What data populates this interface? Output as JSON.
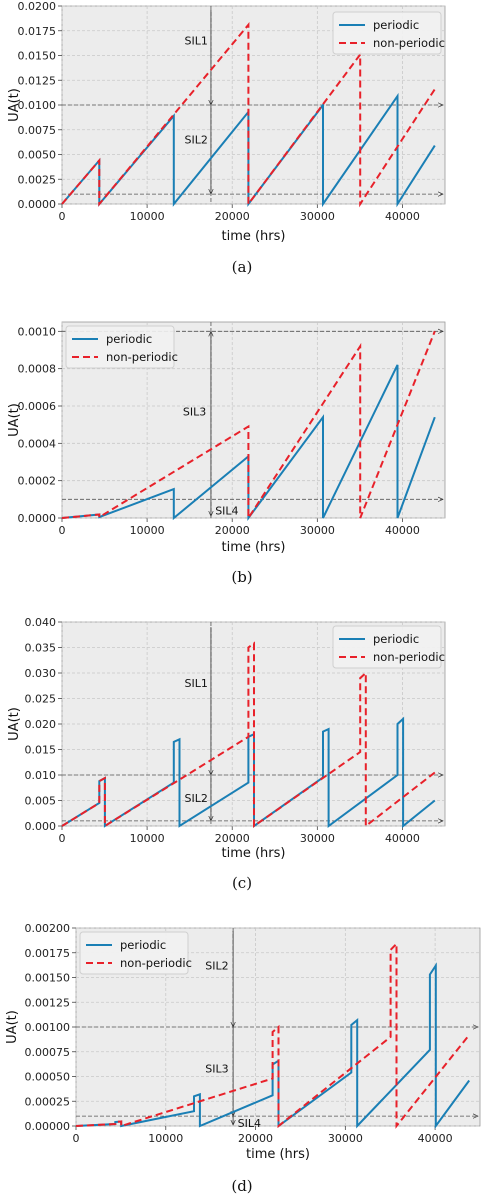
{
  "chart_data": [
    {
      "type": "line",
      "caption": "(a)",
      "xlabel": "time (hrs)",
      "ylabel": "UA(t)",
      "xlim": [
        0,
        45000
      ],
      "ylim": [
        0,
        0.02
      ],
      "xticks": [
        0,
        10000,
        20000,
        30000,
        40000
      ],
      "xtick_labels": [
        "0",
        "10000",
        "20000",
        "30000",
        "40000"
      ],
      "yticks": [
        0,
        0.0025,
        0.005,
        0.0075,
        0.01,
        0.0125,
        0.015,
        0.0175,
        0.02
      ],
      "ytick_labels": [
        "0.0000",
        "0.0025",
        "0.0050",
        "0.0075",
        "0.0100",
        "0.0125",
        "0.0150",
        "0.0175",
        "0.0200"
      ],
      "grid": true,
      "legend": "top-right",
      "series": [
        {
          "name": "periodic",
          "color": "#1a7fb5",
          "dash": "solid",
          "x": [
            0,
            4380,
            4380,
            13140,
            13140,
            21900,
            21900,
            30660,
            30660,
            39420,
            39420,
            43800
          ],
          "y": [
            0,
            0.0044,
            0,
            0.0089,
            0,
            0.0093,
            0,
            0.01,
            0,
            0.0109,
            0,
            0.0059
          ]
        },
        {
          "name": "non-periodic",
          "color": "#e8212a",
          "dash": "dashed",
          "x": [
            0,
            4380,
            4380,
            21900,
            21900,
            35040,
            35040,
            43800
          ],
          "y": [
            0,
            0.0044,
            0,
            0.0181,
            0,
            0.0151,
            0,
            0.0116
          ]
        }
      ],
      "hlines": [
        0.01,
        0.001
      ],
      "vline_x": 17500,
      "annotations": [
        {
          "text": "SIL1",
          "x": 14400,
          "y": 0.0165
        },
        {
          "text": "SIL2",
          "x": 14400,
          "y": 0.0065
        }
      ],
      "arrows": [
        {
          "x": 17500,
          "y_from": 0.0196,
          "y_to": 0.01
        },
        {
          "x": 17500,
          "y_from": 0.01,
          "y_to": 0.001
        }
      ]
    },
    {
      "type": "line",
      "caption": "(b)",
      "xlabel": "time (hrs)",
      "ylabel": "UA(t)",
      "xlim": [
        0,
        45000
      ],
      "ylim": [
        0,
        0.00105
      ],
      "xticks": [
        0,
        10000,
        20000,
        30000,
        40000
      ],
      "xtick_labels": [
        "0",
        "10000",
        "20000",
        "30000",
        "40000"
      ],
      "yticks": [
        0,
        0.0002,
        0.0004,
        0.0006,
        0.0008,
        0.001
      ],
      "ytick_labels": [
        "0.0000",
        "0.0002",
        "0.0004",
        "0.0006",
        "0.0008",
        "0.0010"
      ],
      "grid": true,
      "legend": "top-left",
      "series": [
        {
          "name": "periodic",
          "color": "#1a7fb5",
          "dash": "solid",
          "x": [
            0,
            4380,
            4380,
            13140,
            13140,
            21900,
            21900,
            30660,
            30660,
            39420,
            39420,
            43800
          ],
          "y": [
            0,
            1.9e-05,
            5e-06,
            0.000155,
            0,
            0.00033,
            0,
            0.00054,
            0,
            0.00082,
            0,
            0.00054
          ]
        },
        {
          "name": "non-periodic",
          "color": "#e8212a",
          "dash": "dashed",
          "x": [
            0,
            4380,
            4380,
            21900,
            21900,
            35040,
            35040,
            43800
          ],
          "y": [
            0,
            1.9e-05,
            5e-06,
            0.00049,
            0,
            0.00092,
            0,
            0.001
          ]
        }
      ],
      "hlines": [
        0.001,
        0.0001
      ],
      "vline_x": 17500,
      "annotations": [
        {
          "text": "SIL3",
          "x": 14200,
          "y": 0.00057
        },
        {
          "text": "SIL4",
          "x": 18000,
          "y": 4e-05
        }
      ],
      "arrows": [
        {
          "x": 17500,
          "y_from": 0.0001,
          "y_to": 0.001
        },
        {
          "x": 17500,
          "y_from": 0.0001,
          "y_to": 1e-05
        }
      ]
    },
    {
      "type": "line",
      "caption": "(c)",
      "xlabel": "time (hrs)",
      "ylabel": "UA(t)",
      "xlim": [
        0,
        45000
      ],
      "ylim": [
        0,
        0.04
      ],
      "xticks": [
        0,
        10000,
        20000,
        30000,
        40000
      ],
      "xtick_labels": [
        "0",
        "10000",
        "20000",
        "30000",
        "40000"
      ],
      "yticks": [
        0,
        0.005,
        0.01,
        0.015,
        0.02,
        0.025,
        0.03,
        0.035,
        0.04
      ],
      "ytick_labels": [
        "0.000",
        "0.005",
        "0.010",
        "0.015",
        "0.020",
        "0.025",
        "0.030",
        "0.035",
        "0.040"
      ],
      "grid": true,
      "legend": "top-right",
      "series": [
        {
          "name": "periodic",
          "color": "#1a7fb5",
          "dash": "solid",
          "x": [
            0,
            4380,
            4380,
            5040,
            5040,
            13140,
            13140,
            13800,
            13800,
            21900,
            21900,
            22560,
            22560,
            30660,
            30660,
            31320,
            31320,
            39420,
            39420,
            40080,
            40080,
            43800
          ],
          "y": [
            0,
            0.0045,
            0.0088,
            0.0094,
            0,
            0.0085,
            0.0165,
            0.017,
            0,
            0.0085,
            0.0175,
            0.018,
            0,
            0.0095,
            0.0185,
            0.019,
            0,
            0.01,
            0.02,
            0.021,
            0,
            0.005
          ]
        },
        {
          "name": "non-periodic",
          "color": "#e8212a",
          "dash": "dashed",
          "x": [
            0,
            4380,
            4380,
            5040,
            5040,
            21900,
            21900,
            22560,
            22560,
            35040,
            35040,
            35700,
            35700,
            43800
          ],
          "y": [
            0,
            0.0045,
            0.0088,
            0.0094,
            0,
            0.0175,
            0.035,
            0.0358,
            0,
            0.0145,
            0.029,
            0.03,
            0,
            0.0105
          ]
        }
      ],
      "hlines": [
        0.01,
        0.001
      ],
      "vline_x": 17500,
      "annotations": [
        {
          "text": "SIL1",
          "x": 14400,
          "y": 0.028
        },
        {
          "text": "SIL2",
          "x": 14400,
          "y": 0.0055
        }
      ],
      "arrows": [
        {
          "x": 17500,
          "y_from": 0.039,
          "y_to": 0.01
        },
        {
          "x": 17500,
          "y_from": 0.01,
          "y_to": 0.001
        }
      ]
    },
    {
      "type": "line",
      "caption": "(d)",
      "xlabel": "time (hrs)",
      "ylabel": "UA(t)",
      "xlim": [
        0,
        45000
      ],
      "ylim": [
        0,
        0.002
      ],
      "xticks": [
        0,
        10000,
        20000,
        30000,
        40000
      ],
      "xtick_labels": [
        "0",
        "10000",
        "20000",
        "30000",
        "40000"
      ],
      "yticks": [
        0,
        0.00025,
        0.0005,
        0.00075,
        0.001,
        0.00125,
        0.0015,
        0.00175,
        0.002
      ],
      "ytick_labels": [
        "0.00000",
        "0.00025",
        "0.00050",
        "0.00075",
        "0.00100",
        "0.00125",
        "0.00150",
        "0.00175",
        "0.00200"
      ],
      "grid": true,
      "legend": "top-left",
      "series": [
        {
          "name": "periodic",
          "color": "#1a7fb5",
          "dash": "solid",
          "x": [
            0,
            4380,
            4380,
            5040,
            5040,
            13140,
            13140,
            13800,
            13800,
            21900,
            21900,
            22560,
            22560,
            30660,
            30660,
            31320,
            31320,
            39420,
            39420,
            40080,
            40080,
            43800
          ],
          "y": [
            0,
            2e-05,
            4e-05,
            4.5e-05,
            0,
            0.00015,
            0.0003,
            0.00032,
            0,
            0.00031,
            0.00062,
            0.00066,
            0,
            0.00054,
            0.00102,
            0.00107,
            0,
            0.00077,
            0.00153,
            0.00162,
            0,
            0.00046
          ]
        },
        {
          "name": "non-periodic",
          "color": "#e8212a",
          "dash": "dashed",
          "x": [
            0,
            4380,
            4380,
            5040,
            5040,
            21900,
            21900,
            22560,
            22560,
            35040,
            35040,
            35700,
            35700,
            43800
          ],
          "y": [
            0,
            2e-05,
            4e-05,
            4.5e-05,
            0,
            0.00048,
            0.00095,
            0.001,
            0,
            0.0009,
            0.00178,
            0.00184,
            0,
            0.00092
          ]
        }
      ],
      "hlines": [
        0.001,
        0.0001
      ],
      "vline_x": 17500,
      "annotations": [
        {
          "text": "SIL2",
          "x": 14400,
          "y": 0.00162
        },
        {
          "text": "SIL3",
          "x": 14400,
          "y": 0.00058
        },
        {
          "text": "SIL4",
          "x": 18000,
          "y": 3e-05
        }
      ],
      "arrows": [
        {
          "x": 17500,
          "y_from": 0.00197,
          "y_to": 0.001
        },
        {
          "x": 17500,
          "y_from": 0.001,
          "y_to": 0.0001
        },
        {
          "x": 17500,
          "y_from": 0.0001,
          "y_to": 1e-05
        }
      ]
    }
  ]
}
